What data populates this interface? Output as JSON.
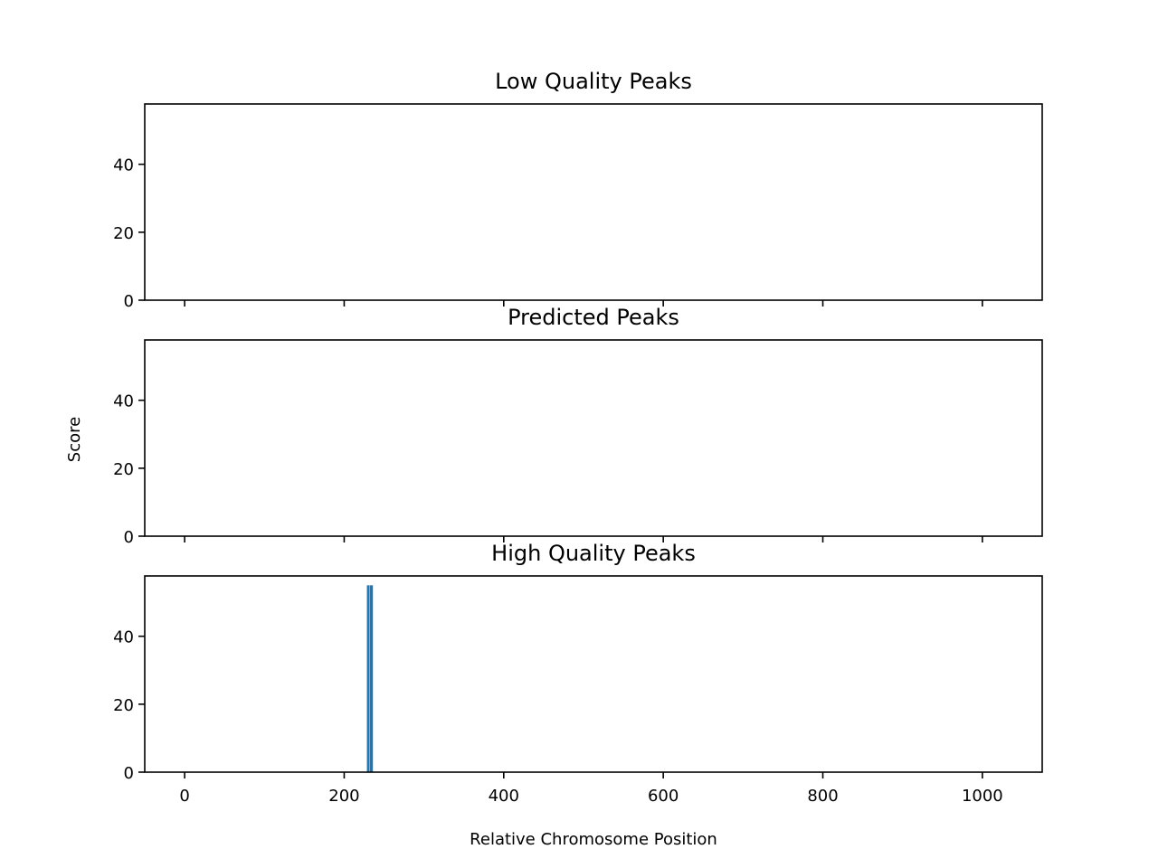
{
  "chart_data": [
    {
      "type": "bar",
      "title": "Low Quality Peaks",
      "xlabel": "",
      "ylabel": "",
      "xlim": [
        -50,
        1075
      ],
      "ylim": [
        0,
        57.75
      ],
      "xticks": [
        0,
        200,
        400,
        600,
        800,
        1000
      ],
      "yticks": [
        0,
        20,
        40
      ],
      "xticklabels_visible": false,
      "grid": false,
      "bars": []
    },
    {
      "type": "bar",
      "title": "Predicted Peaks",
      "xlabel": "",
      "ylabel": "Score",
      "xlim": [
        -50,
        1075
      ],
      "ylim": [
        0,
        57.75
      ],
      "xticks": [
        0,
        200,
        400,
        600,
        800,
        1000
      ],
      "yticks": [
        0,
        20,
        40
      ],
      "xticklabels_visible": false,
      "grid": false,
      "bars": []
    },
    {
      "type": "bar",
      "title": "High Quality Peaks",
      "xlabel": "Relative Chromosome Position",
      "ylabel": "",
      "xlim": [
        -50,
        1075
      ],
      "ylim": [
        0,
        57.75
      ],
      "xticks": [
        0,
        200,
        400,
        600,
        800,
        1000
      ],
      "yticks": [
        0,
        20,
        40
      ],
      "xticklabels_visible": true,
      "grid": false,
      "bar_color": "#1f77b4",
      "bars": [
        {
          "x": 230,
          "width": 3,
          "value": 55
        },
        {
          "x": 234,
          "width": 4,
          "value": 55
        }
      ]
    }
  ]
}
